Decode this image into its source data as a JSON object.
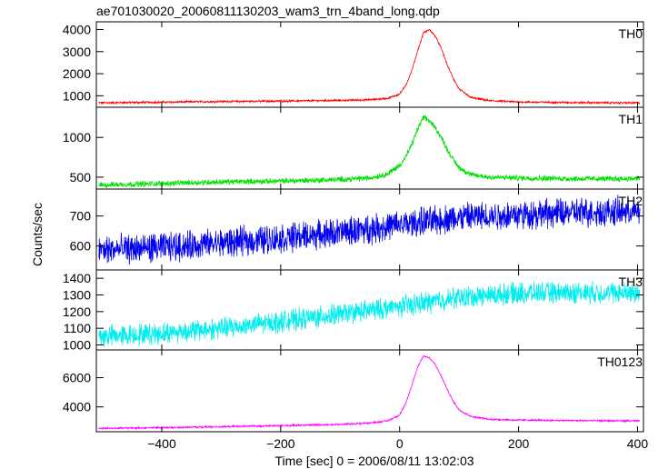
{
  "title": "ae701030020_20060811130203_wam3_trn_4band_long.qdp",
  "ylabel": "Counts/sec",
  "xlabel": "Time [sec] 0 = 2006/08/11 13:02:03",
  "chart_data": {
    "type": "line",
    "title": "ae701030020_20060811130203_wam3_trn_4band_long.qdp",
    "xlabel": "Time [sec] 0 = 2006/08/11 13:02:03",
    "ylabel": "Counts/sec",
    "xlim": [
      -510,
      410
    ],
    "xticks": [
      -400,
      -200,
      0,
      200,
      400
    ],
    "xtick_labels": [
      "−400",
      "−200",
      "0",
      "200",
      "400"
    ],
    "grid": false,
    "panels": [
      {
        "name": "TH0",
        "color": "#ff0000",
        "ylim": [
          480,
          4350
        ],
        "yticks": [
          1000,
          2000,
          3000,
          4000
        ],
        "ytick_labels": [
          "1000",
          "2000",
          "3000",
          "4000"
        ],
        "noise": 35,
        "x": [
          -510,
          -400,
          -300,
          -200,
          -100,
          -50,
          -20,
          0,
          10,
          20,
          30,
          40,
          50,
          60,
          70,
          80,
          90,
          100,
          120,
          150,
          200,
          300,
          400,
          410
        ],
        "y": [
          680,
          710,
          740,
          760,
          790,
          820,
          880,
          1080,
          1450,
          2100,
          3000,
          3850,
          4000,
          3700,
          3150,
          2400,
          1800,
          1300,
          920,
          780,
          720,
          690,
          680,
          680
        ]
      },
      {
        "name": "TH1",
        "color": "#00e000",
        "ylim": [
          350,
          1380
        ],
        "yticks": [
          500,
          1000
        ],
        "ytick_labels": [
          "500",
          "1000"
        ],
        "noise": 28,
        "x": [
          -510,
          -400,
          -300,
          -200,
          -100,
          -50,
          -20,
          0,
          10,
          20,
          30,
          40,
          50,
          60,
          70,
          80,
          90,
          100,
          120,
          150,
          200,
          300,
          400,
          410
        ],
        "y": [
          400,
          420,
          440,
          450,
          470,
          490,
          540,
          650,
          750,
          900,
          1100,
          1250,
          1210,
          1120,
          1000,
          850,
          720,
          620,
          530,
          500,
          490,
          480,
          480,
          480
        ]
      },
      {
        "name": "TH2",
        "color": "#0000ee",
        "ylim": [
          520,
          790
        ],
        "yticks": [
          600,
          700
        ],
        "ytick_labels": [
          "600",
          "700"
        ],
        "noise": 38,
        "x": [
          -510,
          -400,
          -300,
          -200,
          -100,
          0,
          100,
          200,
          300,
          400,
          410
        ],
        "y": [
          585,
          595,
          610,
          625,
          645,
          670,
          695,
          705,
          712,
          715,
          715
        ]
      },
      {
        "name": "TH3",
        "color": "#00eeee",
        "ylim": [
          970,
          1450
        ],
        "yticks": [
          1000,
          1100,
          1200,
          1300,
          1400
        ],
        "ytick_labels": [
          "1000",
          "1100",
          "1200",
          "1300",
          "1400"
        ],
        "noise": 50,
        "x": [
          -510,
          -400,
          -300,
          -200,
          -100,
          0,
          100,
          200,
          300,
          400,
          410
        ],
        "y": [
          1050,
          1070,
          1100,
          1140,
          1185,
          1230,
          1285,
          1310,
          1315,
          1310,
          1310
        ]
      },
      {
        "name": "TH0123",
        "color": "#ff00ff",
        "ylim": [
          2300,
          7900
        ],
        "yticks": [
          4000,
          6000
        ],
        "ytick_labels": [
          "4000",
          "6000"
        ],
        "noise": 45,
        "x": [
          -510,
          -400,
          -300,
          -200,
          -100,
          -50,
          -20,
          0,
          10,
          20,
          30,
          40,
          50,
          60,
          70,
          80,
          90,
          100,
          120,
          150,
          200,
          300,
          400,
          410
        ],
        "y": [
          2530,
          2580,
          2640,
          2720,
          2800,
          2900,
          3050,
          3450,
          4200,
          5400,
          6700,
          7500,
          7350,
          6900,
          6100,
          5200,
          4400,
          3800,
          3350,
          3150,
          3100,
          3060,
          3040,
          3040
        ]
      }
    ]
  }
}
